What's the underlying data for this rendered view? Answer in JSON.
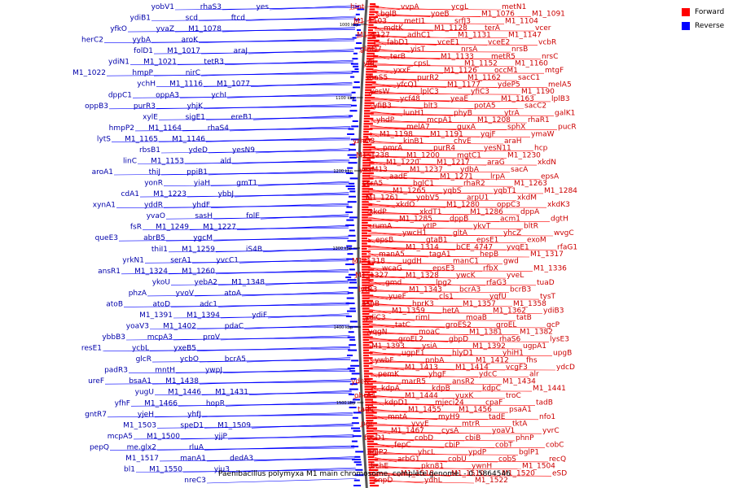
{
  "caption": "Paenibacillus polymyxa M1 main chromosome, complete genome. - 0..5864546",
  "legend": {
    "forward_label": "Forward",
    "reverse_label": "Reverse"
  },
  "colors": {
    "forward": "#ff0000",
    "reverse": "#0000ff",
    "forward_label": "#cc0000",
    "reverse_label": "#0000aa",
    "ring": "#555555"
  },
  "ticks": [
    "1000 kbp",
    "1100 kbp",
    "1200 kbp",
    "1300 kbp",
    "1400 kbp",
    "1500 kbp"
  ],
  "forward_labels": [
    "hint",
    "vvpA",
    "ycgL",
    "metN1",
    "bglB",
    "yoeB",
    "M1_1076",
    "M1_1091",
    "M1_1103",
    "metI1",
    "srfJ3",
    "M1_1104",
    "mdtK",
    "M1_1128",
    "terA",
    "vcer",
    "M1_1127",
    "adhC1",
    "M1_1131",
    "M1_1147",
    "fabD1",
    "vceE1",
    "vceE2",
    "vcbR",
    "glnQ7",
    "yisT",
    "nrsA",
    "nrsB",
    "terB",
    "M1_1133",
    "metR5",
    "nrsC",
    "yfjL",
    "cpsL",
    "M1_1152",
    "M1_1160",
    "yxxF",
    "M1_1126",
    "occM1",
    "mtgF",
    "rhaS5",
    "purR2",
    "M1_1162",
    "sacC1",
    "yfcQ1",
    "M1_1177",
    "ydeP5",
    "melA5",
    "yesW",
    "lplC3",
    "yfiC3",
    "M1_1190",
    "ycf48",
    "yeaE",
    "M1_1163",
    "lplB3",
    "yfiB3",
    "blt3",
    "potA5",
    "sacC2",
    "lunH1",
    "phyB",
    "ytrA",
    "galK1",
    "yhdP",
    "mcpA1",
    "M1_1208",
    "rhaR1",
    "melA7",
    "guxA",
    "sphX",
    "pucR",
    "M1_1198",
    "M1_1191",
    "yqjF",
    "ymaW",
    "yrhO3",
    "kinB1",
    "chvE",
    "araH",
    "pmrA",
    "purR4",
    "yesN11",
    "hcp",
    "M1_1238",
    "M1_1200",
    "mgtC1",
    "M1_1230",
    "M1_1220",
    "M1_1217",
    "araG",
    "xkdN",
    "yesM13",
    "M1_1237",
    "ydbA",
    "sacA",
    "aadE",
    "M1_1271",
    "lrpA",
    "epsA",
    "scrA5",
    "bglC1",
    "rhaR2",
    "M1_1263",
    "M1_1265",
    "yqbS",
    "yqbT1",
    "M1_1284",
    "M1_1261",
    "yobV5",
    "arpU1",
    "xkdM",
    "xkdO",
    "M1_1280",
    "oppC3",
    "xkdK3",
    "xkdP",
    "xkdT1",
    "M1_1286",
    "dppA",
    "M1_1285",
    "dppB",
    "acm1",
    "dgtH",
    "rumA",
    "ytIP",
    "ykvT",
    "bltR",
    "ywcH1",
    "gltA",
    "yhcZ",
    "wvgC",
    "epsB",
    "gtaB1",
    "epsE1",
    "exoM",
    "M1_1314",
    "bCE_4747",
    "yvqE1",
    "rfaG1",
    "manA5",
    "tagA1",
    "hepB",
    "M1_1317",
    "M1_1318",
    "ugdH",
    "manC1",
    "gwd",
    "wcaG",
    "epsE3",
    "rfbX",
    "M1_1336",
    "M1_1327",
    "M1_1328",
    "ywcK",
    "yveL",
    "gmd",
    "lpg2",
    "rfaG3",
    "tuaD",
    "lytR3",
    "M1_1343",
    "bcrA3",
    "bcrB3",
    "yueF",
    "cls1",
    "yqfU",
    "tysT",
    "asnB",
    "hprK3",
    "M1_1357",
    "M1_1358",
    "M1_1359",
    "hetA",
    "M1_1362",
    "ydiB3",
    "ydiC3",
    "rimI",
    "moaB",
    "tatB",
    "tatC",
    "groES2",
    "groEL",
    "gcP",
    "yqgN",
    "moaC",
    "M1_1381",
    "M1_1382",
    "groEL2",
    "gbpD",
    "rhaS6",
    "lysE3",
    "M1_1393",
    "ysiA",
    "M1_1392",
    "ugpA1",
    "ugpE1",
    "hlyD1",
    "yhiH1",
    "upgB",
    "ywbF",
    "pnbA",
    "M1_1412",
    "fhs",
    "M1_1413",
    "M1_1414",
    "vcgF3",
    "ydcD",
    "pemK",
    "yhgF",
    "ydcC",
    "alr",
    "ydcK",
    "marR5",
    "ansR2",
    "M1_1434",
    "kdpA",
    "kdpB",
    "kdpC",
    "M1_1441",
    "ohrA1",
    "M1_1444",
    "yuxK",
    "troC",
    "kdpD1",
    "mjeci24",
    "cpaF",
    "tadB",
    "tadC",
    "M1_1455",
    "M1_1456",
    "psaA1",
    "mntA",
    "myH9",
    "tadE",
    "nfo1",
    "pgi",
    "yvyE",
    "mtrR",
    "tktA",
    "M1_1467",
    "cysA",
    "yoaV1",
    "yvrC",
    "fecD1",
    "cobD",
    "cbiB",
    "phnP",
    "fepC",
    "cbiP",
    "cobT",
    "cobC",
    "bglP2",
    "yhcL",
    "ypdP",
    "bglP1",
    "arbG1",
    "cobU",
    "cobS",
    "recQ",
    "bchE",
    "pkn81",
    "ywnH",
    "M1_1504",
    "M1_1518",
    "M1_1510",
    "M1_1520",
    "eSD",
    "cnpD",
    "ydhL",
    "M1_1522"
  ],
  "reverse_labels": [
    "yes",
    "rhaS3",
    "yobV1",
    "ftcd",
    "scd",
    "ydiB1",
    "M1_1078",
    "yvaZ",
    "yfkO",
    "aroK",
    "yybA",
    "herC2",
    "araJ",
    "M1_1017",
    "folD1",
    "tetR3",
    "M1_1021",
    "ydiN1",
    "nirC",
    "hmpP",
    "M1_1022",
    "M1_1077",
    "M1_1116",
    "ychH",
    "ychI",
    "oppA3",
    "dppC1",
    "yhjK",
    "purR3",
    "oppB3",
    "ereB1",
    "sigE1",
    "xylE",
    "rhaS4",
    "M1_1164",
    "hmpP2",
    "M1_1146",
    "M1_1165",
    "lytS",
    "yesN9",
    "ydeD",
    "rbsB1",
    "ald",
    "M1_1153",
    "linC",
    "ppiB1",
    "thiJ",
    "aroA1",
    "gmT1",
    "yiaH",
    "yonR",
    "ybbJ",
    "M1_1223",
    "cdA1",
    "yhdF",
    "yddR",
    "xynA1",
    "folE",
    "sasH",
    "yvaO",
    "M1_1227",
    "M1_1249",
    "fsR",
    "ygcM",
    "abrB5",
    "queE3",
    "iS4B",
    "M1_1259",
    "thiI1",
    "yvcC1",
    "serA1",
    "yrkN1",
    "M1_1260",
    "M1_1324",
    "ansR1",
    "M1_1348",
    "yebA2",
    "ykoU",
    "atoA",
    "yvoV",
    "phzA",
    "adc1",
    "atoD",
    "atoB",
    "ydiF",
    "M1_1394",
    "M1_1391",
    "pdaC",
    "M1_1402",
    "yoaV3",
    "proV",
    "mcpA3",
    "ybbB3",
    "yxeB5",
    "ycbL",
    "resE1",
    "bcrA5",
    "ycbO",
    "glcR",
    "ywpJ",
    "mntH",
    "padR3",
    "M1_1438",
    "bsaA1",
    "ureF",
    "M1_1431",
    "M1_1446",
    "yugU",
    "hopR",
    "M1_1466",
    "yfhF",
    "yhfJ",
    "yjeH",
    "gntR7",
    "M1_1509",
    "speD1",
    "M1_1503",
    "yjjP",
    "M1_1500",
    "mcpA5",
    "rluA",
    "me.glx2",
    "pepQ",
    "dedA3",
    "manA1",
    "M1_1517",
    "yju3",
    "M1_1550",
    "bl1",
    "nreC3"
  ]
}
